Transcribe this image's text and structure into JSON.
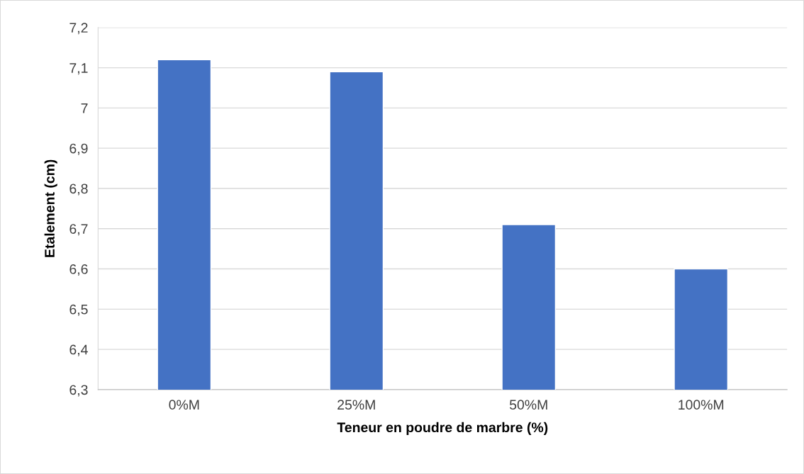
{
  "chart_data": {
    "type": "bar",
    "xlabel": "Teneur en poudre de marbre (%)",
    "ylabel": "Etalement (cm)",
    "categories": [
      "0%M",
      "25%M",
      "50%M",
      "100%M"
    ],
    "values": [
      7.12,
      7.09,
      6.71,
      6.6
    ],
    "color": "#4472c4",
    "ylim": [
      6.3,
      7.2
    ],
    "yticks": [
      {
        "value": 6.3,
        "label": "6,3"
      },
      {
        "value": 6.4,
        "label": "6,4"
      },
      {
        "value": 6.5,
        "label": "6,5"
      },
      {
        "value": 6.6,
        "label": "6,6"
      },
      {
        "value": 6.7,
        "label": "6,7"
      },
      {
        "value": 6.8,
        "label": "6,8"
      },
      {
        "value": 6.9,
        "label": "6,9"
      },
      {
        "value": 7,
        "label": "7"
      },
      {
        "value": 7.1,
        "label": "7,1"
      },
      {
        "value": 7.2,
        "label": "7,2"
      }
    ],
    "grid": "y",
    "legend": false
  }
}
